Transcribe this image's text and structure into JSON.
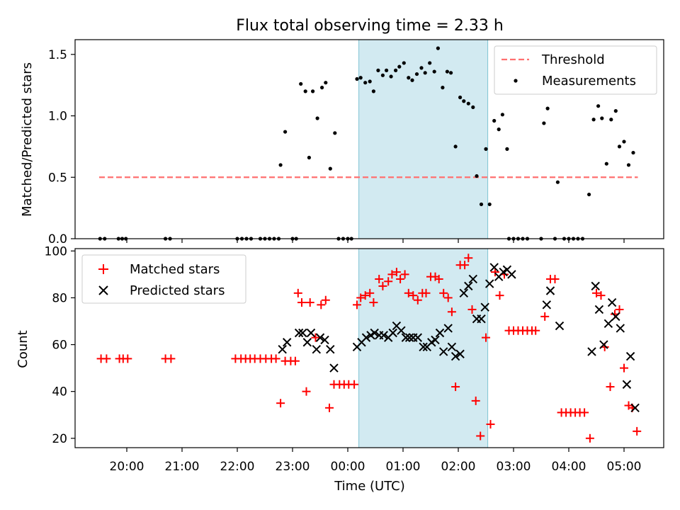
{
  "title": "Flux total observing time = 2.33 h",
  "colors": {
    "threshold": "#ff7070",
    "measurement": "#000000",
    "matched": "#ff0000",
    "predicted": "#000000",
    "span": "#add8e6"
  },
  "chart_data": [
    {
      "type": "scatter",
      "panel": "top",
      "ylabel": "Matched/Predicted stars",
      "xlabel": "",
      "ylim": [
        0,
        1.62
      ],
      "yticks": [
        "0.0",
        "0.5",
        "1.0",
        "1.5"
      ],
      "grid": false,
      "legend": {
        "position": "top-right",
        "entries": [
          "Threshold",
          "Measurements"
        ]
      },
      "highlight_span": [
        "00:12",
        "02:32"
      ],
      "threshold": {
        "name": "Threshold",
        "y": 0.5,
        "x": [
          "19:30",
          "05:15"
        ]
      },
      "series": [
        {
          "name": "Measurements",
          "points": [
            [
              "19:31",
              0
            ],
            [
              "19:36",
              0
            ],
            [
              "19:51",
              0
            ],
            [
              "19:55",
              0
            ],
            [
              "19:59",
              0
            ],
            [
              "20:42",
              0
            ],
            [
              "20:47",
              0
            ],
            [
              "22:00",
              0
            ],
            [
              "22:05",
              0
            ],
            [
              "22:10",
              0
            ],
            [
              "22:15",
              0
            ],
            [
              "22:25",
              0
            ],
            [
              "22:30",
              0
            ],
            [
              "22:35",
              0
            ],
            [
              "22:40",
              0
            ],
            [
              "22:45",
              0
            ],
            [
              "22:47",
              0.6
            ],
            [
              "22:52",
              0.87
            ],
            [
              "23:00",
              0
            ],
            [
              "23:04",
              0
            ],
            [
              "23:09",
              1.26
            ],
            [
              "23:14",
              1.2
            ],
            [
              "23:18",
              0.66
            ],
            [
              "23:22",
              1.2
            ],
            [
              "23:27",
              0.98
            ],
            [
              "23:32",
              1.23
            ],
            [
              "23:36",
              1.27
            ],
            [
              "23:41",
              0.57
            ],
            [
              "23:46",
              0.86
            ],
            [
              "23:50",
              0
            ],
            [
              "23:55",
              0
            ],
            [
              "00:00",
              0
            ],
            [
              "00:04",
              0
            ],
            [
              "00:10",
              1.3
            ],
            [
              "00:14",
              1.31
            ],
            [
              "00:19",
              1.27
            ],
            [
              "00:24",
              1.28
            ],
            [
              "00:28",
              1.2
            ],
            [
              "00:33",
              1.37
            ],
            [
              "00:38",
              1.33
            ],
            [
              "00:42",
              1.37
            ],
            [
              "00:47",
              1.32
            ],
            [
              "00:52",
              1.37
            ],
            [
              "00:56",
              1.4
            ],
            [
              "01:01",
              1.43
            ],
            [
              "01:06",
              1.31
            ],
            [
              "01:10",
              1.29
            ],
            [
              "01:15",
              1.34
            ],
            [
              "01:20",
              1.39
            ],
            [
              "01:24",
              1.35
            ],
            [
              "01:29",
              1.43
            ],
            [
              "01:34",
              1.36
            ],
            [
              "01:38",
              1.55
            ],
            [
              "01:43",
              1.23
            ],
            [
              "01:48",
              1.36
            ],
            [
              "01:52",
              1.35
            ],
            [
              "01:57",
              0.75
            ],
            [
              "02:02",
              1.15
            ],
            [
              "02:06",
              1.12
            ],
            [
              "02:11",
              1.1
            ],
            [
              "02:16",
              1.07
            ],
            [
              "02:20",
              0.51
            ],
            [
              "02:25",
              0.28
            ],
            [
              "02:30",
              0.73
            ],
            [
              "02:34",
              0.28
            ],
            [
              "02:39",
              0.96
            ],
            [
              "02:44",
              0.89
            ],
            [
              "02:48",
              1.01
            ],
            [
              "02:53",
              0.73
            ],
            [
              "02:55",
              0
            ],
            [
              "03:00",
              0
            ],
            [
              "03:05",
              0
            ],
            [
              "03:10",
              0
            ],
            [
              "03:15",
              0
            ],
            [
              "03:30",
              0
            ],
            [
              "03:33",
              0.94
            ],
            [
              "03:37",
              1.06
            ],
            [
              "03:48",
              0.46
            ],
            [
              "03:45",
              0
            ],
            [
              "03:55",
              0
            ],
            [
              "04:00",
              0
            ],
            [
              "04:05",
              0
            ],
            [
              "04:10",
              0
            ],
            [
              "04:15",
              0
            ],
            [
              "04:22",
              0.36
            ],
            [
              "04:27",
              0.97
            ],
            [
              "04:32",
              1.08
            ],
            [
              "04:36",
              0.98
            ],
            [
              "04:41",
              0.61
            ],
            [
              "04:46",
              0.97
            ],
            [
              "04:51",
              1.04
            ],
            [
              "04:55",
              0.75
            ],
            [
              "05:00",
              0.79
            ],
            [
              "05:05",
              0.6
            ],
            [
              "05:10",
              0.7
            ]
          ]
        }
      ]
    },
    {
      "type": "scatter",
      "panel": "bottom",
      "ylabel": "Count",
      "xlabel": "Time (UTC)",
      "ylim": [
        16,
        101
      ],
      "yticks": [
        "20",
        "40",
        "60",
        "80",
        "100"
      ],
      "xticks": [
        "20:00",
        "21:00",
        "22:00",
        "23:00",
        "00:00",
        "01:00",
        "02:00",
        "03:00",
        "04:00",
        "05:00"
      ],
      "grid": false,
      "legend": {
        "position": "top-left",
        "entries": [
          "Matched stars",
          "Predicted stars"
        ]
      },
      "highlight_span": [
        "00:12",
        "02:32"
      ],
      "series": [
        {
          "name": "Matched stars",
          "marker": "plus",
          "points": [
            [
              "19:32",
              54
            ],
            [
              "19:38",
              54
            ],
            [
              "19:52",
              54
            ],
            [
              "19:56",
              54
            ],
            [
              "20:01",
              54
            ],
            [
              "20:42",
              54
            ],
            [
              "20:48",
              54
            ],
            [
              "21:58",
              54
            ],
            [
              "22:04",
              54
            ],
            [
              "22:09",
              54
            ],
            [
              "22:14",
              54
            ],
            [
              "22:19",
              54
            ],
            [
              "22:25",
              54
            ],
            [
              "22:31",
              54
            ],
            [
              "22:37",
              54
            ],
            [
              "22:42",
              54
            ],
            [
              "22:47",
              35
            ],
            [
              "22:52",
              53
            ],
            [
              "22:58",
              53
            ],
            [
              "23:03",
              53
            ],
            [
              "23:06",
              82
            ],
            [
              "23:10",
              78
            ],
            [
              "23:15",
              40
            ],
            [
              "23:19",
              78
            ],
            [
              "23:25",
              63
            ],
            [
              "23:31",
              77
            ],
            [
              "23:36",
              79
            ],
            [
              "23:40",
              33
            ],
            [
              "23:45",
              43
            ],
            [
              "23:51",
              43
            ],
            [
              "23:56",
              43
            ],
            [
              "00:01",
              43
            ],
            [
              "00:07",
              43
            ],
            [
              "00:10",
              77
            ],
            [
              "00:14",
              80
            ],
            [
              "00:19",
              81
            ],
            [
              "00:24",
              82
            ],
            [
              "00:28",
              78
            ],
            [
              "00:34",
              88
            ],
            [
              "00:38",
              85
            ],
            [
              "00:44",
              87
            ],
            [
              "00:48",
              90
            ],
            [
              "00:53",
              91
            ],
            [
              "00:57",
              88
            ],
            [
              "01:02",
              90
            ],
            [
              "01:06",
              82
            ],
            [
              "01:11",
              81
            ],
            [
              "01:16",
              79
            ],
            [
              "01:21",
              82
            ],
            [
              "01:25",
              82
            ],
            [
              "01:30",
              89
            ],
            [
              "01:35",
              89
            ],
            [
              "01:39",
              88
            ],
            [
              "01:44",
              82
            ],
            [
              "01:49",
              80
            ],
            [
              "01:53",
              74
            ],
            [
              "01:57",
              42
            ],
            [
              "02:02",
              94
            ],
            [
              "02:07",
              94
            ],
            [
              "02:11",
              97
            ],
            [
              "02:15",
              75
            ],
            [
              "02:19",
              36
            ],
            [
              "02:24",
              21
            ],
            [
              "02:30",
              63
            ],
            [
              "02:35",
              26
            ],
            [
              "02:40",
              91
            ],
            [
              "02:45",
              81
            ],
            [
              "02:50",
              90
            ],
            [
              "02:55",
              66
            ],
            [
              "03:00",
              66
            ],
            [
              "03:05",
              66
            ],
            [
              "03:10",
              66
            ],
            [
              "03:15",
              66
            ],
            [
              "03:20",
              66
            ],
            [
              "03:24",
              66
            ],
            [
              "03:34",
              72
            ],
            [
              "03:40",
              88
            ],
            [
              "03:45",
              88
            ],
            [
              "03:52",
              31
            ],
            [
              "03:57",
              31
            ],
            [
              "04:02",
              31
            ],
            [
              "04:07",
              31
            ],
            [
              "04:12",
              31
            ],
            [
              "04:17",
              31
            ],
            [
              "04:23",
              20
            ],
            [
              "04:30",
              82
            ],
            [
              "04:35",
              81
            ],
            [
              "04:39",
              59
            ],
            [
              "04:45",
              42
            ],
            [
              "04:50",
              73
            ],
            [
              "04:55",
              75
            ],
            [
              "05:00",
              50
            ],
            [
              "05:05",
              34
            ],
            [
              "05:09",
              33
            ],
            [
              "05:14",
              23
            ]
          ]
        },
        {
          "name": "Predicted stars",
          "marker": "x",
          "points": [
            [
              "22:49",
              58
            ],
            [
              "22:54",
              61
            ],
            [
              "23:07",
              65
            ],
            [
              "23:11",
              65
            ],
            [
              "23:16",
              61
            ],
            [
              "23:20",
              65
            ],
            [
              "23:26",
              58
            ],
            [
              "23:30",
              63
            ],
            [
              "23:35",
              62
            ],
            [
              "23:41",
              58
            ],
            [
              "23:45",
              50
            ],
            [
              "00:10",
              59
            ],
            [
              "00:15",
              61
            ],
            [
              "00:20",
              63
            ],
            [
              "00:25",
              64
            ],
            [
              "00:29",
              65
            ],
            [
              "00:34",
              64
            ],
            [
              "00:39",
              64
            ],
            [
              "00:44",
              63
            ],
            [
              "00:49",
              65
            ],
            [
              "00:53",
              68
            ],
            [
              "00:58",
              66
            ],
            [
              "01:03",
              63
            ],
            [
              "01:07",
              63
            ],
            [
              "01:11",
              63
            ],
            [
              "01:16",
              63
            ],
            [
              "01:22",
              59
            ],
            [
              "01:26",
              59
            ],
            [
              "01:31",
              61
            ],
            [
              "01:35",
              62
            ],
            [
              "01:40",
              65
            ],
            [
              "01:44",
              57
            ],
            [
              "01:49",
              67
            ],
            [
              "01:53",
              59
            ],
            [
              "01:57",
              55
            ],
            [
              "02:02",
              56
            ],
            [
              "02:06",
              82
            ],
            [
              "02:11",
              85
            ],
            [
              "02:16",
              88
            ],
            [
              "02:20",
              71
            ],
            [
              "02:25",
              71
            ],
            [
              "02:29",
              76
            ],
            [
              "02:34",
              86
            ],
            [
              "02:39",
              93
            ],
            [
              "02:44",
              89
            ],
            [
              "02:49",
              91
            ],
            [
              "02:53",
              92
            ],
            [
              "02:58",
              90
            ],
            [
              "03:36",
              77
            ],
            [
              "03:40",
              83
            ],
            [
              "03:50",
              68
            ],
            [
              "04:25",
              57
            ],
            [
              "04:29",
              85
            ],
            [
              "04:33",
              75
            ],
            [
              "04:38",
              60
            ],
            [
              "04:43",
              69
            ],
            [
              "04:47",
              78
            ],
            [
              "04:51",
              72
            ],
            [
              "04:56",
              67
            ],
            [
              "05:03",
              43
            ],
            [
              "05:07",
              55
            ],
            [
              "05:12",
              33
            ]
          ]
        }
      ]
    }
  ]
}
